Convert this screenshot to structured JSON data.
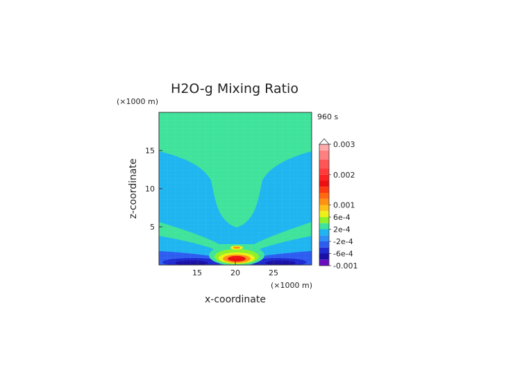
{
  "chart_data": {
    "type": "heatmap",
    "title": "H2O-g Mixing Ratio",
    "time_label": "960 s",
    "xlabel": "x-coordinate",
    "ylabel": "z-coordinate",
    "x_unit": "(×1000 m)",
    "y_unit": "(×1000 m)",
    "xlim": [
      10,
      30
    ],
    "ylim": [
      0,
      20
    ],
    "x_ticks": [
      15,
      20,
      25
    ],
    "y_ticks": [
      5,
      10,
      15
    ],
    "grid": false,
    "legend": "colorbar-right",
    "colorbar": {
      "levels": [
        {
          "value": -0.001,
          "color": "#6a0dbf"
        },
        {
          "value": -0.0008,
          "color": "#1a10a8"
        },
        {
          "value": -0.0006,
          "color": "#1f2bd0"
        },
        {
          "value": -0.0004,
          "color": "#2d5df0"
        },
        {
          "value": -0.0002,
          "color": "#2f8ef5"
        },
        {
          "value": 0.0,
          "color": "#1fb5f0"
        },
        {
          "value": 0.0002,
          "color": "#40e39b"
        },
        {
          "value": 0.0004,
          "color": "#8ef02a"
        },
        {
          "value": 0.0006,
          "color": "#eef01a"
        },
        {
          "value": 0.0008,
          "color": "#ffc018"
        },
        {
          "value": 0.001,
          "color": "#ff9114"
        },
        {
          "value": 0.0012,
          "color": "#ff6810"
        },
        {
          "value": 0.0014,
          "color": "#ff3a10"
        },
        {
          "value": 0.0016,
          "color": "#ee1010"
        },
        {
          "value": 0.0018,
          "color": "#ff2222"
        },
        {
          "value": 0.002,
          "color": "#ff3b3b"
        },
        {
          "value": 0.0022,
          "color": "#ff5555"
        },
        {
          "value": 0.0025,
          "color": "#ff8080"
        },
        {
          "value": 0.0028,
          "color": "#ffaaaa"
        }
      ],
      "tick_labels": [
        {
          "value": 0.003,
          "label": "0.003"
        },
        {
          "value": 0.002,
          "label": "0.002"
        },
        {
          "value": 0.001,
          "label": "0.001"
        },
        {
          "value": 0.0006,
          "label": "6e-4"
        },
        {
          "value": 0.0002,
          "label": "2e-4"
        },
        {
          "value": -0.0002,
          "label": "-2e-4"
        },
        {
          "value": -0.0006,
          "label": "-6e-4"
        },
        {
          "value": -0.001,
          "label": "-0.001"
        }
      ]
    }
  }
}
